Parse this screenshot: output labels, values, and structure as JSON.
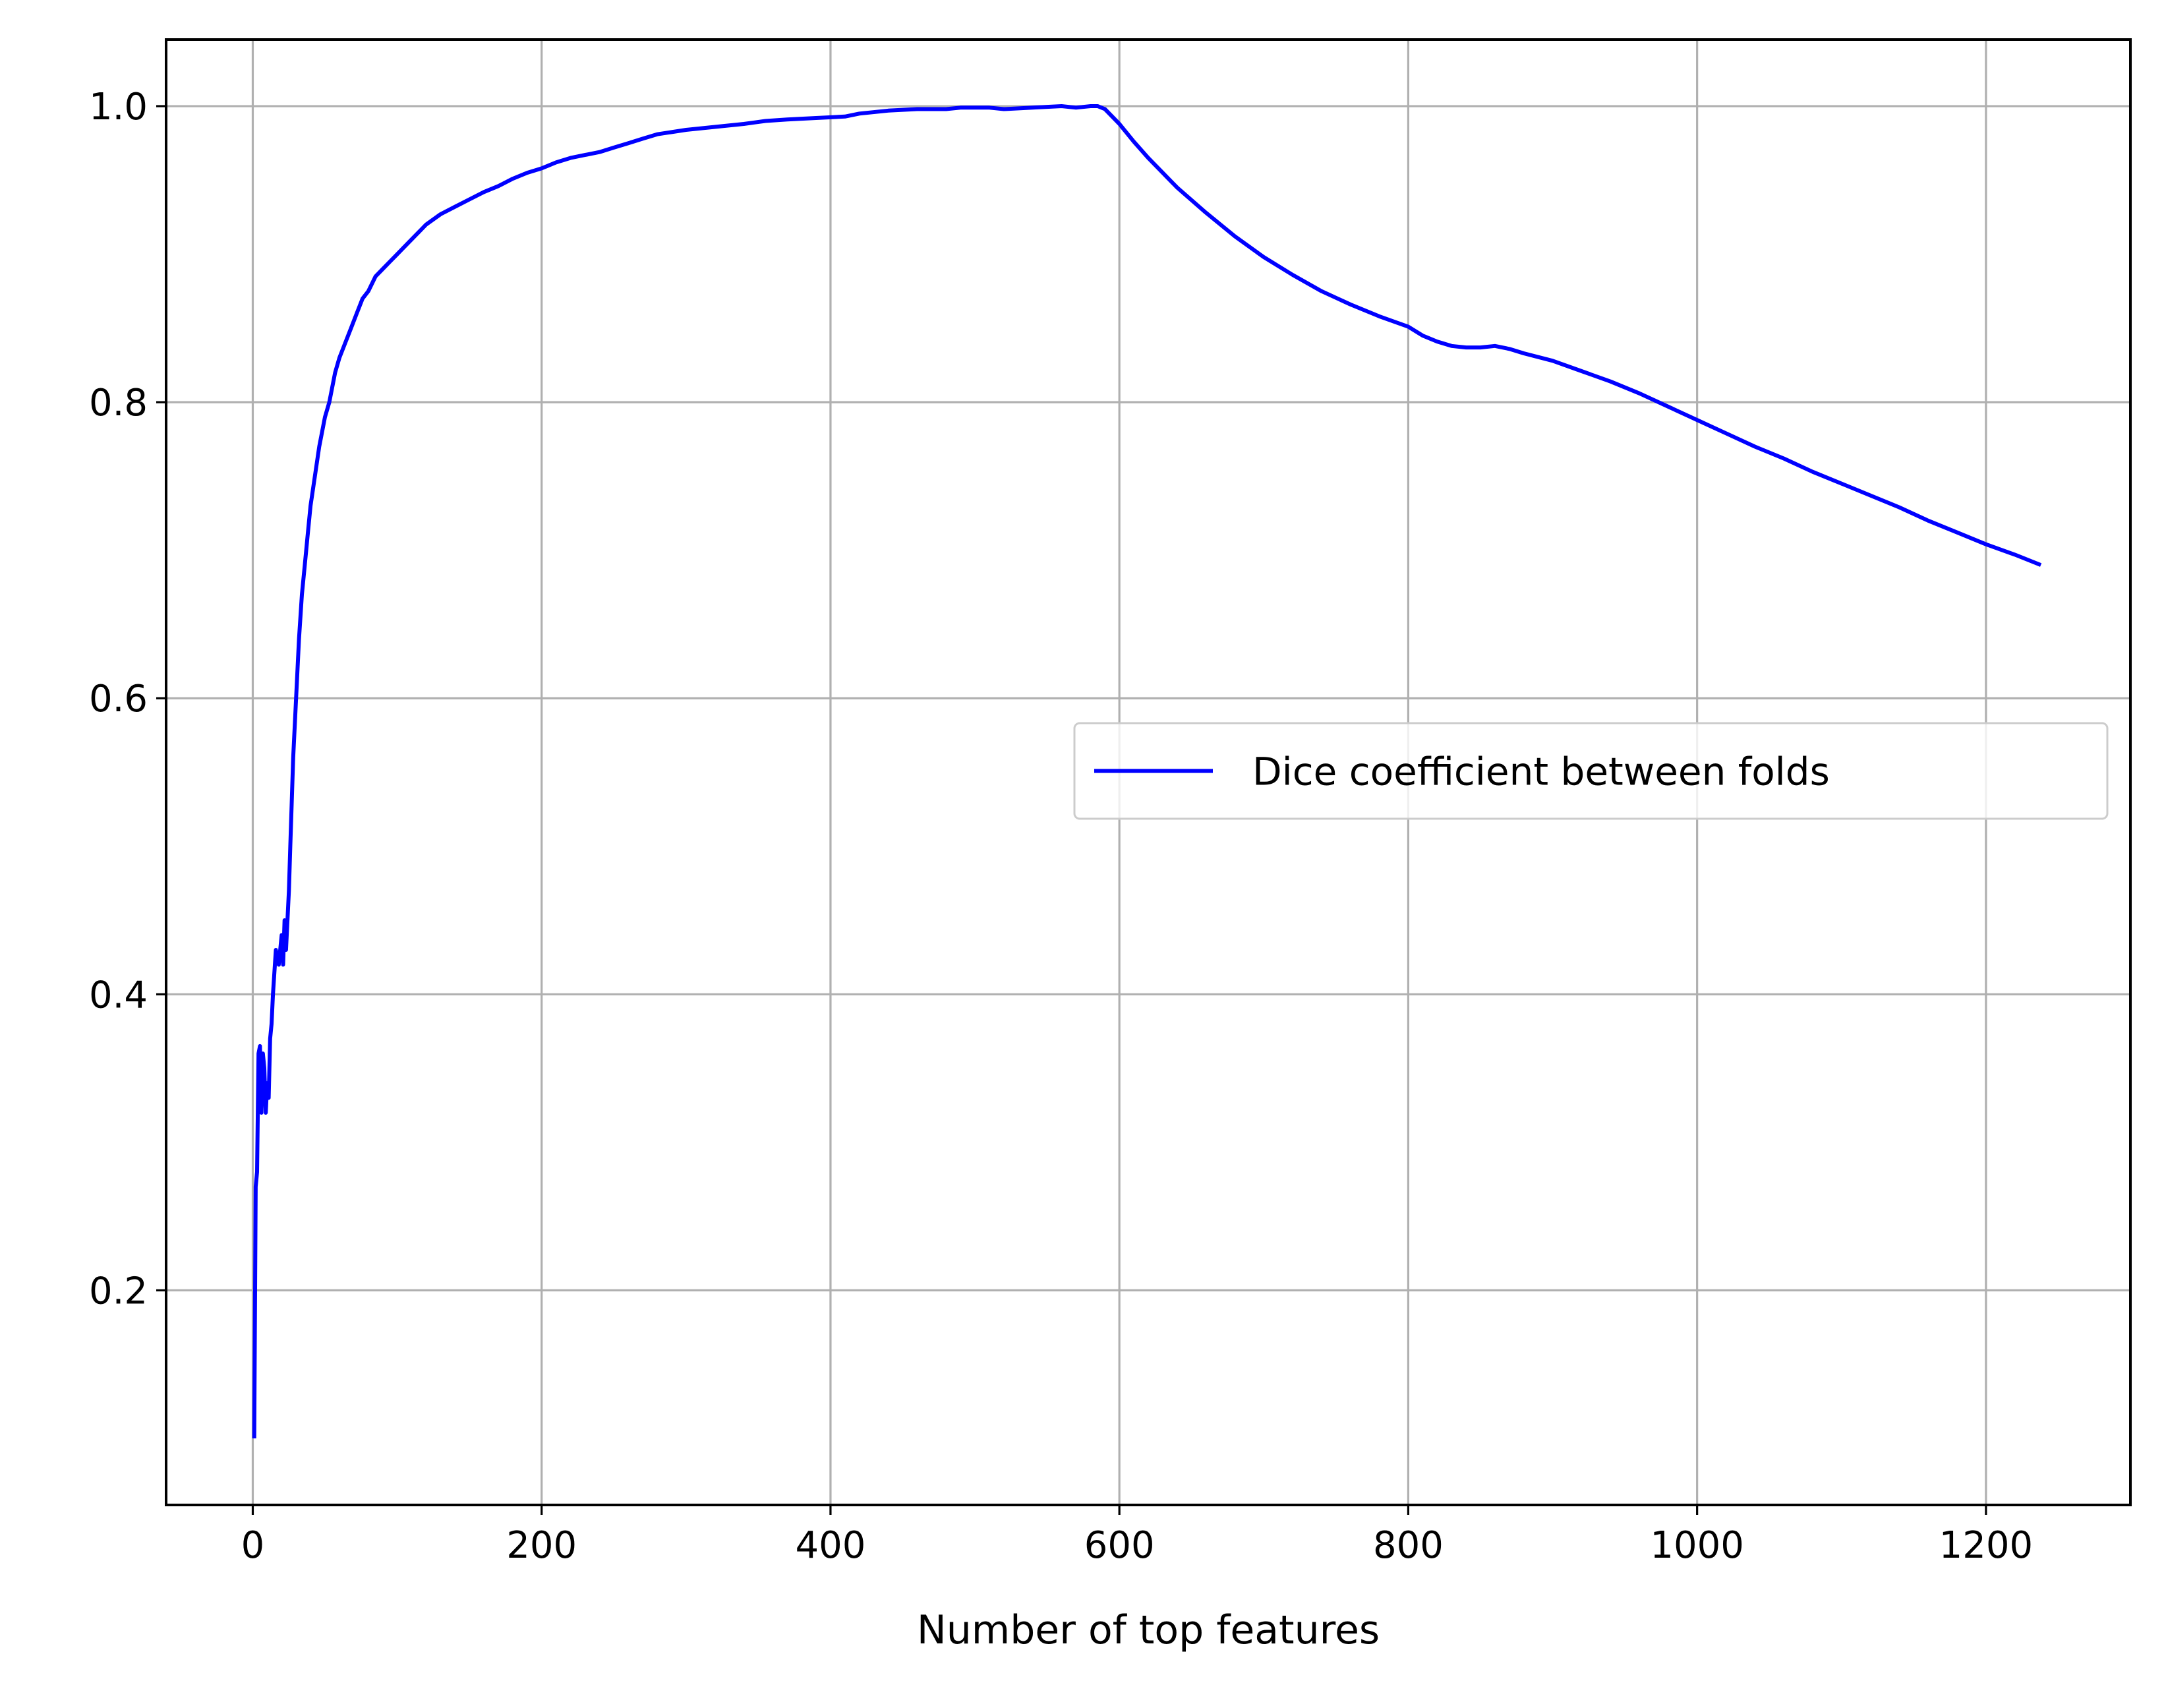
{
  "chart_data": {
    "type": "line",
    "title": "",
    "xlabel": "Number of top features",
    "ylabel": "",
    "xlim": [
      -60,
      1300
    ],
    "ylim": [
      0.055,
      1.045
    ],
    "xticks": [
      0,
      200,
      400,
      600,
      800,
      1000,
      1200
    ],
    "xtick_labels": [
      "0",
      "200",
      "400",
      "600",
      "800",
      "1000",
      "1200"
    ],
    "yticks": [
      0.2,
      0.4,
      0.6,
      0.8,
      1.0
    ],
    "ytick_labels": [
      "0.2",
      "0.4",
      "0.6",
      "0.8",
      "1.0"
    ],
    "grid": true,
    "legend": {
      "placement": "center-right"
    },
    "series": [
      {
        "name": "Dice coefficient between folds",
        "color": "#0000ff",
        "x": [
          1,
          2,
          3,
          4,
          5,
          6,
          7,
          8,
          9,
          10,
          11,
          12,
          13,
          14,
          16,
          18,
          20,
          21,
          22,
          23,
          24,
          25,
          26,
          27,
          28,
          30,
          32,
          34,
          36,
          38,
          40,
          43,
          46,
          50,
          53,
          57,
          60,
          64,
          68,
          72,
          76,
          80,
          85,
          90,
          95,
          100,
          105,
          110,
          115,
          120,
          130,
          140,
          150,
          160,
          170,
          180,
          190,
          200,
          210,
          220,
          230,
          240,
          250,
          260,
          270,
          280,
          300,
          320,
          340,
          355,
          370,
          390,
          410,
          420,
          440,
          460,
          480,
          490,
          500,
          510,
          520,
          540,
          560,
          570,
          580,
          585,
          590,
          600,
          610,
          620,
          640,
          660,
          680,
          700,
          720,
          740,
          760,
          780,
          800,
          810,
          820,
          830,
          840,
          850,
          860,
          870,
          880,
          900,
          920,
          940,
          960,
          980,
          1000,
          1020,
          1040,
          1060,
          1080,
          1100,
          1120,
          1140,
          1160,
          1180,
          1200,
          1220,
          1238
        ],
        "y": [
          0.1,
          0.27,
          0.28,
          0.36,
          0.365,
          0.32,
          0.36,
          0.35,
          0.32,
          0.34,
          0.33,
          0.37,
          0.38,
          0.4,
          0.43,
          0.42,
          0.44,
          0.42,
          0.45,
          0.43,
          0.45,
          0.47,
          0.5,
          0.53,
          0.56,
          0.6,
          0.64,
          0.67,
          0.69,
          0.71,
          0.73,
          0.75,
          0.77,
          0.79,
          0.8,
          0.82,
          0.83,
          0.84,
          0.85,
          0.86,
          0.87,
          0.875,
          0.885,
          0.89,
          0.895,
          0.9,
          0.905,
          0.91,
          0.915,
          0.92,
          0.927,
          0.932,
          0.937,
          0.942,
          0.946,
          0.951,
          0.955,
          0.958,
          0.962,
          0.965,
          0.967,
          0.969,
          0.972,
          0.975,
          0.978,
          0.981,
          0.984,
          0.986,
          0.988,
          0.99,
          0.991,
          0.992,
          0.993,
          0.995,
          0.997,
          0.998,
          0.998,
          0.999,
          0.999,
          0.999,
          0.998,
          0.999,
          1.0,
          0.999,
          1.0,
          1.0,
          0.998,
          0.988,
          0.976,
          0.965,
          0.945,
          0.928,
          0.912,
          0.898,
          0.886,
          0.875,
          0.866,
          0.858,
          0.851,
          0.845,
          0.841,
          0.838,
          0.837,
          0.837,
          0.838,
          0.836,
          0.833,
          0.828,
          0.821,
          0.814,
          0.806,
          0.797,
          0.788,
          0.779,
          0.77,
          0.762,
          0.753,
          0.745,
          0.737,
          0.729,
          0.72,
          0.712,
          0.704,
          0.697,
          0.69
        ]
      }
    ]
  }
}
